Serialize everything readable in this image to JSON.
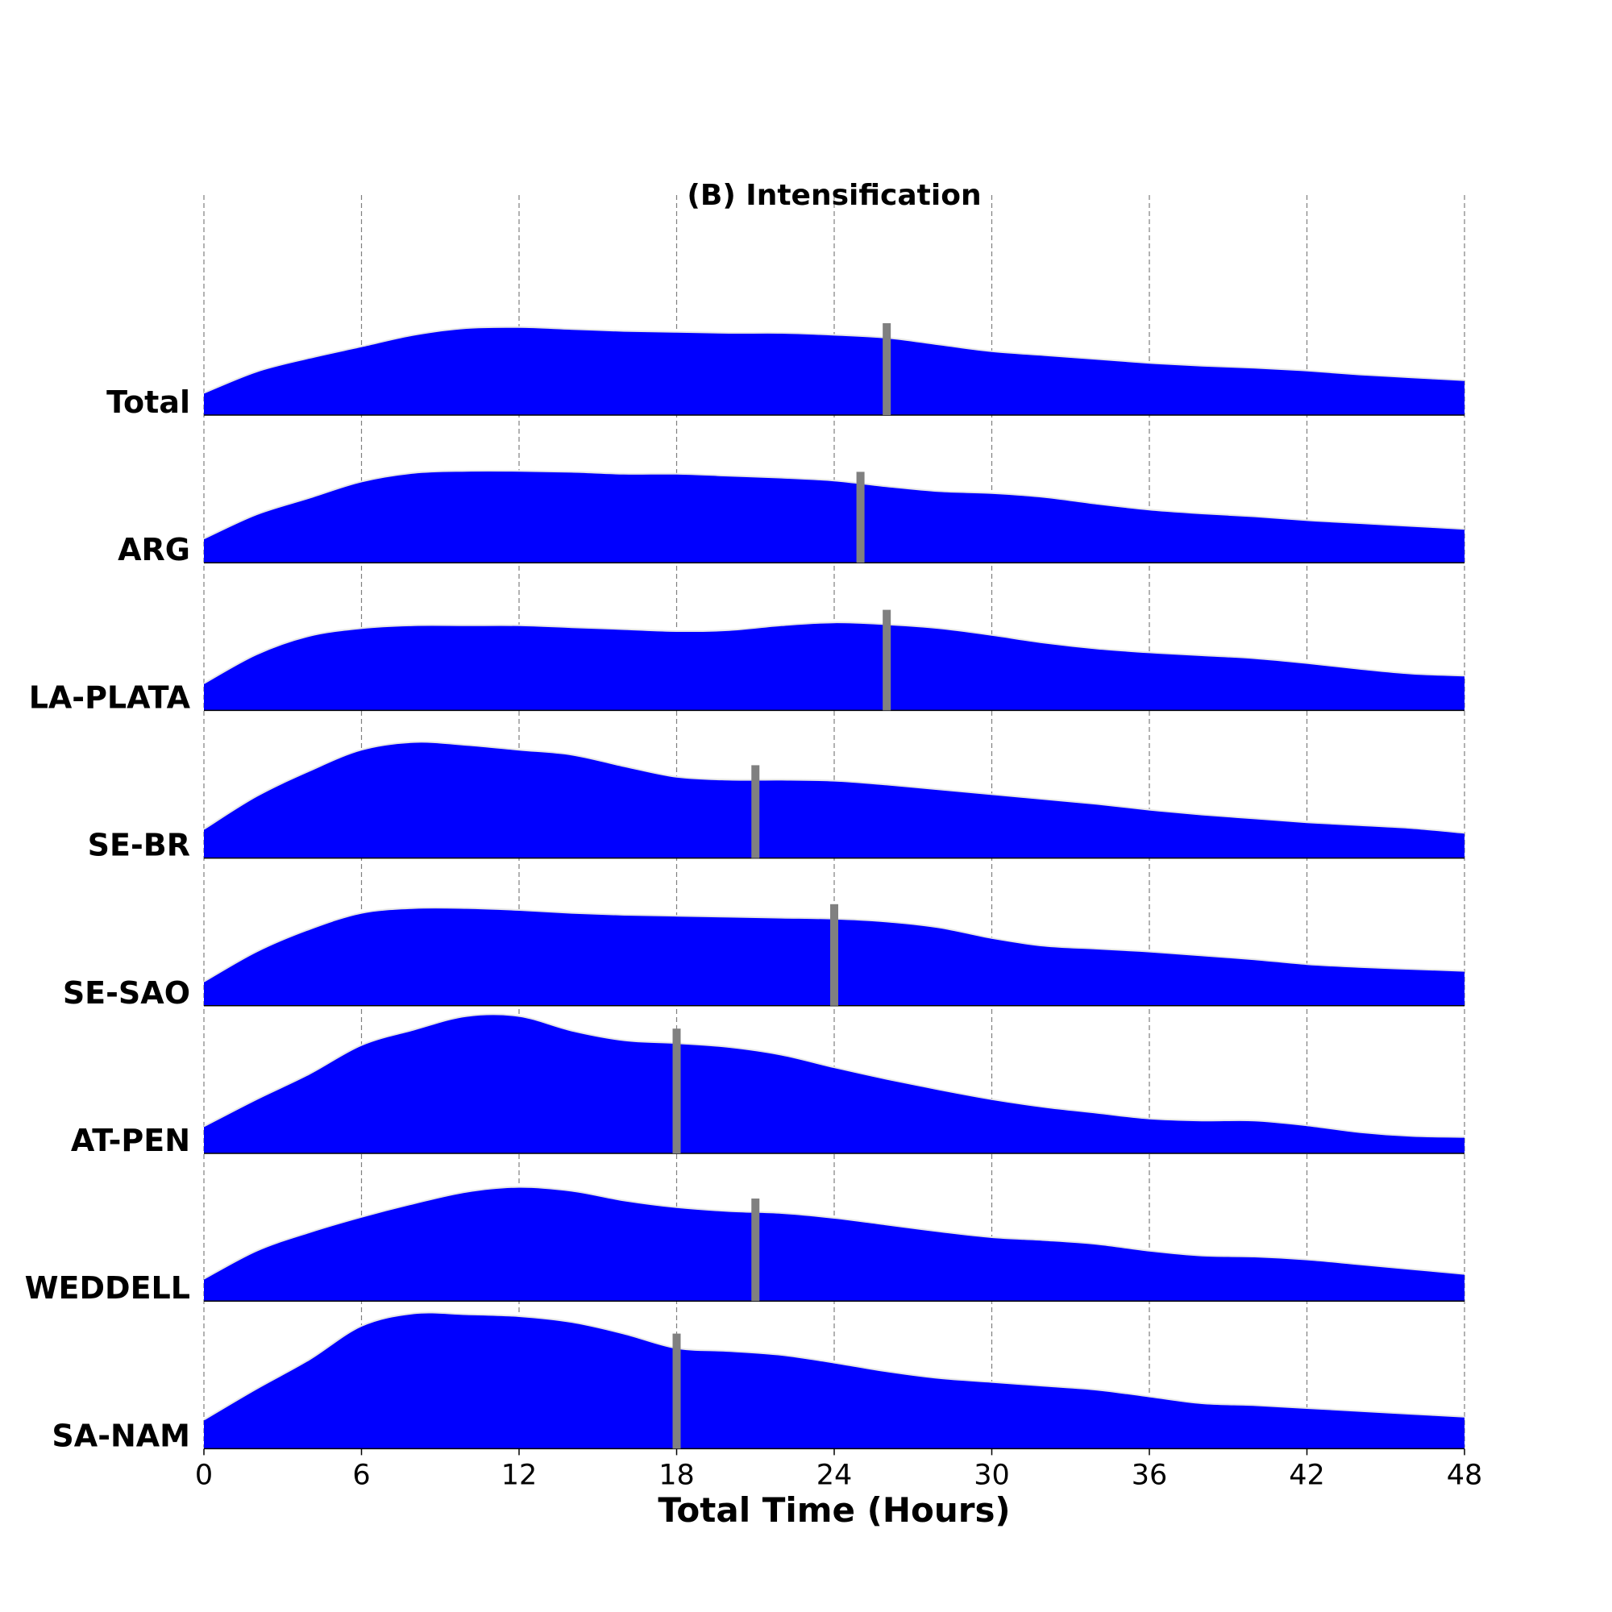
{
  "chart_data": {
    "type": "area",
    "title": "(B) Intensification",
    "xlabel": "Total Time (Hours)",
    "xlim": [
      0,
      48
    ],
    "xticks": [
      0,
      6,
      12,
      18,
      24,
      30,
      36,
      42,
      48
    ],
    "grid": "vertical dashed",
    "fill_color": "#0000ff",
    "edge_color": "#e6e6e6",
    "marker_color": "#808080",
    "x": [
      0,
      2,
      4,
      6,
      8,
      10,
      12,
      14,
      16,
      18,
      20,
      22,
      24,
      26,
      28,
      30,
      32,
      34,
      36,
      38,
      40,
      42,
      44,
      46,
      48
    ],
    "series": [
      {
        "name": "Total",
        "marker": 26,
        "values": [
          0.23,
          0.45,
          0.59,
          0.71,
          0.83,
          0.9,
          0.91,
          0.89,
          0.87,
          0.86,
          0.85,
          0.85,
          0.83,
          0.8,
          0.73,
          0.66,
          0.62,
          0.58,
          0.54,
          0.51,
          0.49,
          0.46,
          0.42,
          0.39,
          0.36
        ]
      },
      {
        "name": "ARG",
        "marker": 25,
        "values": [
          0.25,
          0.5,
          0.67,
          0.84,
          0.93,
          0.95,
          0.95,
          0.94,
          0.92,
          0.92,
          0.9,
          0.88,
          0.85,
          0.79,
          0.74,
          0.72,
          0.68,
          0.61,
          0.55,
          0.51,
          0.48,
          0.44,
          0.41,
          0.38,
          0.35
        ]
      },
      {
        "name": "LA-PLATA",
        "marker": 26,
        "values": [
          0.28,
          0.58,
          0.77,
          0.85,
          0.88,
          0.88,
          0.88,
          0.86,
          0.84,
          0.82,
          0.83,
          0.88,
          0.91,
          0.89,
          0.85,
          0.78,
          0.7,
          0.64,
          0.6,
          0.57,
          0.54,
          0.49,
          0.43,
          0.38,
          0.36
        ]
      },
      {
        "name": "SE-BR",
        "marker": 21,
        "values": [
          0.3,
          0.64,
          0.9,
          1.12,
          1.2,
          1.17,
          1.12,
          1.07,
          0.95,
          0.84,
          0.81,
          0.81,
          0.8,
          0.76,
          0.71,
          0.66,
          0.61,
          0.56,
          0.5,
          0.45,
          0.41,
          0.37,
          0.34,
          0.31,
          0.26
        ]
      },
      {
        "name": "SE-SAO",
        "marker": 24,
        "values": [
          0.25,
          0.56,
          0.79,
          0.96,
          1.01,
          1.01,
          0.99,
          0.96,
          0.94,
          0.93,
          0.92,
          0.91,
          0.9,
          0.87,
          0.81,
          0.7,
          0.62,
          0.59,
          0.56,
          0.52,
          0.48,
          0.43,
          0.4,
          0.38,
          0.36
        ]
      },
      {
        "name": "AT-PEN",
        "marker": 18,
        "values": [
          0.28,
          0.56,
          0.82,
          1.12,
          1.28,
          1.42,
          1.42,
          1.27,
          1.17,
          1.14,
          1.1,
          1.02,
          0.89,
          0.77,
          0.66,
          0.56,
          0.48,
          0.42,
          0.36,
          0.34,
          0.34,
          0.29,
          0.22,
          0.18,
          0.17
        ]
      },
      {
        "name": "WEDDELL",
        "marker": 21,
        "values": [
          0.23,
          0.52,
          0.71,
          0.87,
          1.01,
          1.13,
          1.18,
          1.14,
          1.04,
          0.97,
          0.93,
          0.91,
          0.86,
          0.79,
          0.72,
          0.66,
          0.63,
          0.59,
          0.52,
          0.47,
          0.46,
          0.43,
          0.38,
          0.33,
          0.28
        ]
      },
      {
        "name": "SA-NAM",
        "marker": 18,
        "values": [
          0.3,
          0.62,
          0.92,
          1.27,
          1.4,
          1.39,
          1.37,
          1.31,
          1.19,
          1.04,
          1.01,
          0.97,
          0.89,
          0.8,
          0.73,
          0.69,
          0.65,
          0.61,
          0.54,
          0.47,
          0.45,
          0.42,
          0.39,
          0.36,
          0.33
        ]
      }
    ]
  }
}
